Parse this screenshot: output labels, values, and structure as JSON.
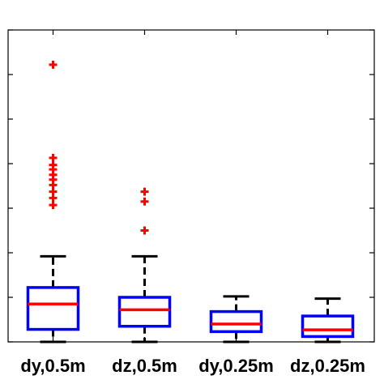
{
  "chart_data": {
    "type": "box",
    "categories": [
      "dy,0.5m",
      "dz,0.5m",
      "dy,0.25m",
      "dz,0.25m"
    ],
    "ylim": [
      0,
      7
    ],
    "yticks": [
      0,
      1,
      2,
      3,
      4,
      5,
      6,
      7
    ],
    "grid": false,
    "colors": {
      "box": "#0000ff",
      "median": "#ff0000",
      "whisker": "#000000",
      "outlier": "#ff0000"
    },
    "boxes": [
      {
        "category": "dy,0.5m",
        "whisker_low": 0.0,
        "q1": 0.28,
        "median": 0.85,
        "q3": 1.22,
        "whisker_high": 1.92,
        "outliers": [
          3.07,
          3.23,
          3.37,
          3.52,
          3.64,
          3.75,
          3.87,
          3.97,
          4.13,
          6.22
        ]
      },
      {
        "category": "dz,0.5m",
        "whisker_low": 0.0,
        "q1": 0.35,
        "median": 0.72,
        "q3": 1.0,
        "whisker_high": 1.92,
        "outliers": [
          2.5,
          3.15,
          3.37
        ]
      },
      {
        "category": "dy,0.25m",
        "whisker_low": 0.0,
        "q1": 0.23,
        "median": 0.4,
        "q3": 0.68,
        "whisker_high": 1.02,
        "outliers": []
      },
      {
        "category": "dz,0.25m",
        "whisker_low": 0.0,
        "q1": 0.12,
        "median": 0.27,
        "q3": 0.58,
        "whisker_high": 0.97,
        "outliers": []
      }
    ]
  }
}
